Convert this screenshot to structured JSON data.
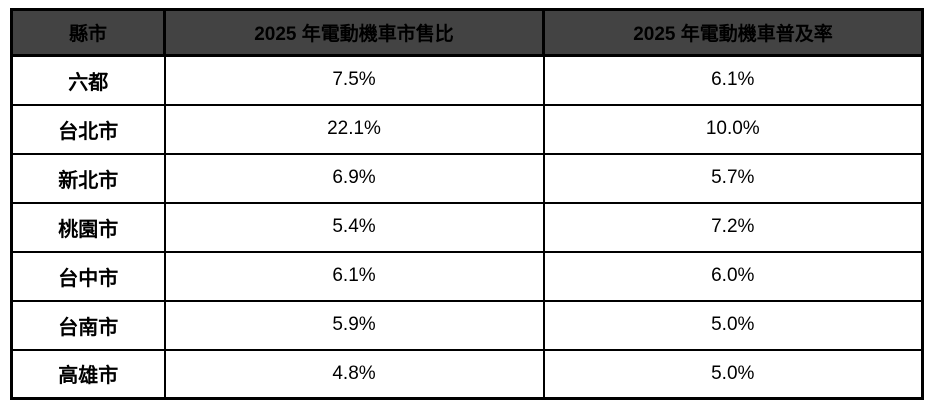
{
  "colors": {
    "header_background": "#434343",
    "border": "#000000",
    "text": "#000000",
    "page_background": "#ffffff"
  },
  "table": {
    "headers": {
      "city": "縣市",
      "sales_ratio": "2025 年電動機車市售比",
      "penetration": "2025 年電動機車普及率"
    },
    "rows": [
      {
        "city": "六都",
        "sales_ratio": "7.5%",
        "penetration": "6.1%"
      },
      {
        "city": "台北市",
        "sales_ratio": "22.1%",
        "penetration": "10.0%"
      },
      {
        "city": "新北市",
        "sales_ratio": "6.9%",
        "penetration": "5.7%"
      },
      {
        "city": "桃園市",
        "sales_ratio": "5.4%",
        "penetration": "7.2%"
      },
      {
        "city": "台中市",
        "sales_ratio": "6.1%",
        "penetration": "6.0%"
      },
      {
        "city": "台南市",
        "sales_ratio": "5.9%",
        "penetration": "5.0%"
      },
      {
        "city": "高雄市",
        "sales_ratio": "4.8%",
        "penetration": "5.0%"
      }
    ]
  }
}
